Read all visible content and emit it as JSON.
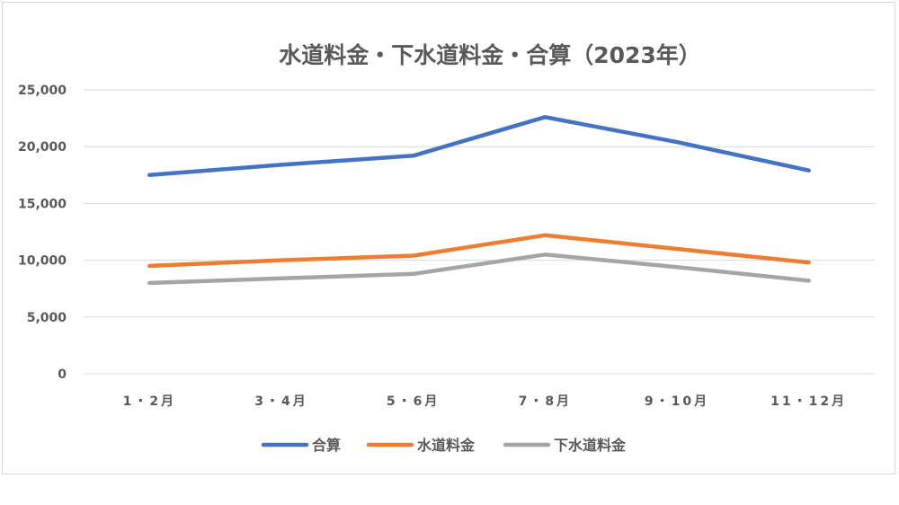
{
  "chart_data": {
    "type": "line",
    "title": "水道料金・下水道料金・合算（2023年）",
    "xlabel": "",
    "ylabel": "",
    "categories": [
      "1・2月",
      "3・4月",
      "5・6月",
      "7・8月",
      "9・10月",
      "11・12月"
    ],
    "ylim": [
      0,
      25000
    ],
    "yticks": [
      0,
      5000,
      10000,
      15000,
      20000,
      25000
    ],
    "ytick_labels": [
      "0",
      "5,000",
      "10,000",
      "15,000",
      "20,000",
      "25,000"
    ],
    "grid": true,
    "legend_position": "bottom",
    "series": [
      {
        "name": "合算",
        "color": "#4472c4",
        "values": [
          17500,
          18400,
          19200,
          22600,
          20400,
          17900
        ]
      },
      {
        "name": "水道料金",
        "color": "#ed7d31",
        "values": [
          9500,
          10000,
          10400,
          12200,
          11000,
          9800
        ]
      },
      {
        "name": "下水道料金",
        "color": "#a5a5a5",
        "values": [
          8000,
          8400,
          8800,
          10500,
          9400,
          8200
        ]
      }
    ]
  }
}
